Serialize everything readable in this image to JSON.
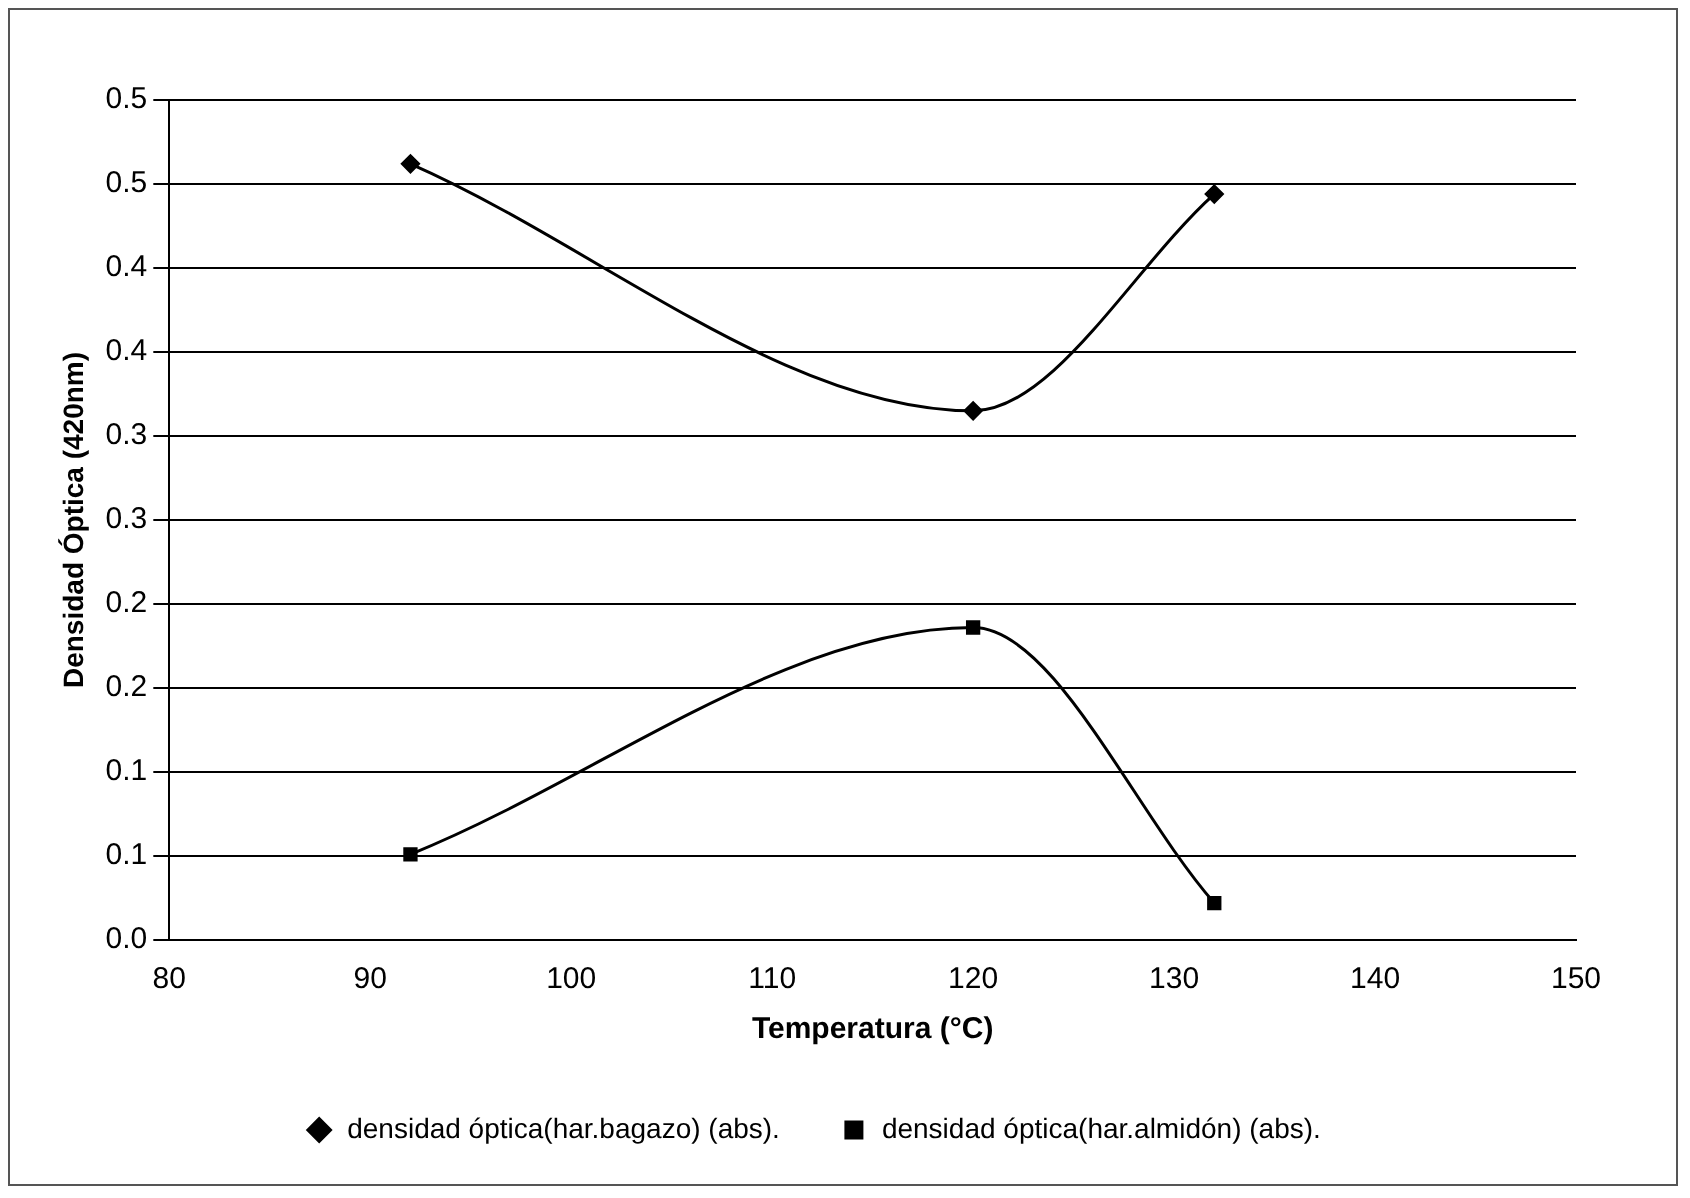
{
  "chart_data": {
    "type": "line",
    "xlabel": "Temperatura (°C)",
    "ylabel": "Densidad Óptica (420nm)",
    "xlim": [
      80,
      150
    ],
    "xticks": [
      80,
      90,
      100,
      110,
      120,
      130,
      140,
      150
    ],
    "ylim": [
      0,
      0.5
    ],
    "yticks": [
      {
        "value": 0,
        "label": "0.0"
      },
      {
        "value": 0.05,
        "label": "0.1"
      },
      {
        "value": 0.1,
        "label": "0.1"
      },
      {
        "value": 0.15,
        "label": "0.2"
      },
      {
        "value": 0.2,
        "label": "0.2"
      },
      {
        "value": 0.25,
        "label": "0.3"
      },
      {
        "value": 0.3,
        "label": "0.3"
      },
      {
        "value": 0.35,
        "label": "0.4"
      },
      {
        "value": 0.4,
        "label": "0.4"
      },
      {
        "value": 0.45,
        "label": "0.5"
      },
      {
        "value": 0.5,
        "label": "0.5"
      }
    ],
    "grid": "y",
    "legend": "bottom",
    "series": [
      {
        "name": "densidad óptica(har.bagazo) (abs).",
        "color": "#000000",
        "marker": "diamond",
        "x": [
          92,
          120,
          132
        ],
        "values": [
          0.462,
          0.315,
          0.444
        ]
      },
      {
        "name": "densidad óptica(har.almidón) (abs).",
        "color": "#000000",
        "marker": "square",
        "x": [
          92,
          120,
          132
        ],
        "values": [
          0.051,
          0.186,
          0.022
        ]
      }
    ]
  }
}
